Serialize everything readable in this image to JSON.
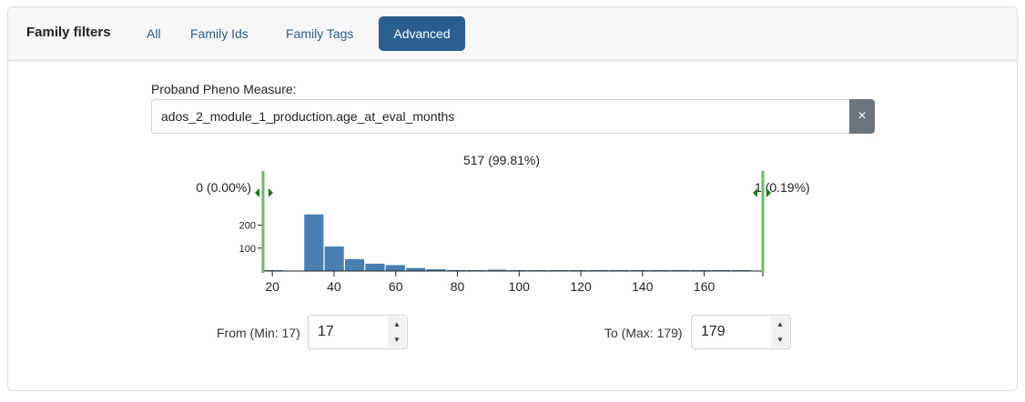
{
  "header": {
    "title": "Family filters",
    "tabs": [
      {
        "label": "All",
        "active": false
      },
      {
        "label": "Family Ids",
        "active": false
      },
      {
        "label": "Family Tags",
        "active": false
      },
      {
        "label": "Advanced",
        "active": true
      }
    ]
  },
  "measure": {
    "label": "Proband Pheno Measure:",
    "value": "ados_2_module_1_production.age_at_eval_months",
    "clear_icon": "close-icon",
    "clear_symbol": "×"
  },
  "histogram": {
    "in_range_label": "517 (99.81%)",
    "below_label": "0 (0.00%)",
    "above_label": "1 (0.19%)",
    "handle_color": "#6dba6d",
    "bar_color": "#4a7fb4"
  },
  "chart_data": {
    "type": "bar",
    "title": "",
    "xlabel": "",
    "ylabel": "",
    "x_ticks": [
      20,
      40,
      60,
      80,
      100,
      120,
      140,
      160
    ],
    "y_ticks": [
      100,
      200
    ],
    "xlim": [
      17,
      179
    ],
    "ylim": [
      0,
      250
    ],
    "bin_width": 6.6,
    "bins": [
      {
        "x0": 17,
        "value": 2
      },
      {
        "x0": 30.2,
        "value": 247
      },
      {
        "x0": 36.8,
        "value": 107
      },
      {
        "x0": 43.4,
        "value": 52
      },
      {
        "x0": 50,
        "value": 32
      },
      {
        "x0": 56.6,
        "value": 26
      },
      {
        "x0": 63.2,
        "value": 13
      },
      {
        "x0": 69.8,
        "value": 8
      },
      {
        "x0": 76.4,
        "value": 4
      },
      {
        "x0": 83,
        "value": 2
      },
      {
        "x0": 89.6,
        "value": 6
      },
      {
        "x0": 96.2,
        "value": 2
      },
      {
        "x0": 102.8,
        "value": 2
      },
      {
        "x0": 109.4,
        "value": 1
      },
      {
        "x0": 116,
        "value": 1
      },
      {
        "x0": 122.6,
        "value": 1
      },
      {
        "x0": 129.2,
        "value": 1
      },
      {
        "x0": 135.8,
        "value": 1
      },
      {
        "x0": 142.4,
        "value": 1
      },
      {
        "x0": 149,
        "value": 1
      },
      {
        "x0": 155.6,
        "value": 1
      },
      {
        "x0": 162.2,
        "value": 1
      },
      {
        "x0": 168.8,
        "value": 1
      }
    ],
    "selection": [
      17,
      179
    ]
  },
  "range": {
    "from_label": "From (Min: 17)",
    "from_value": "17",
    "to_label": "To (Max: 179)",
    "to_value": "179"
  }
}
